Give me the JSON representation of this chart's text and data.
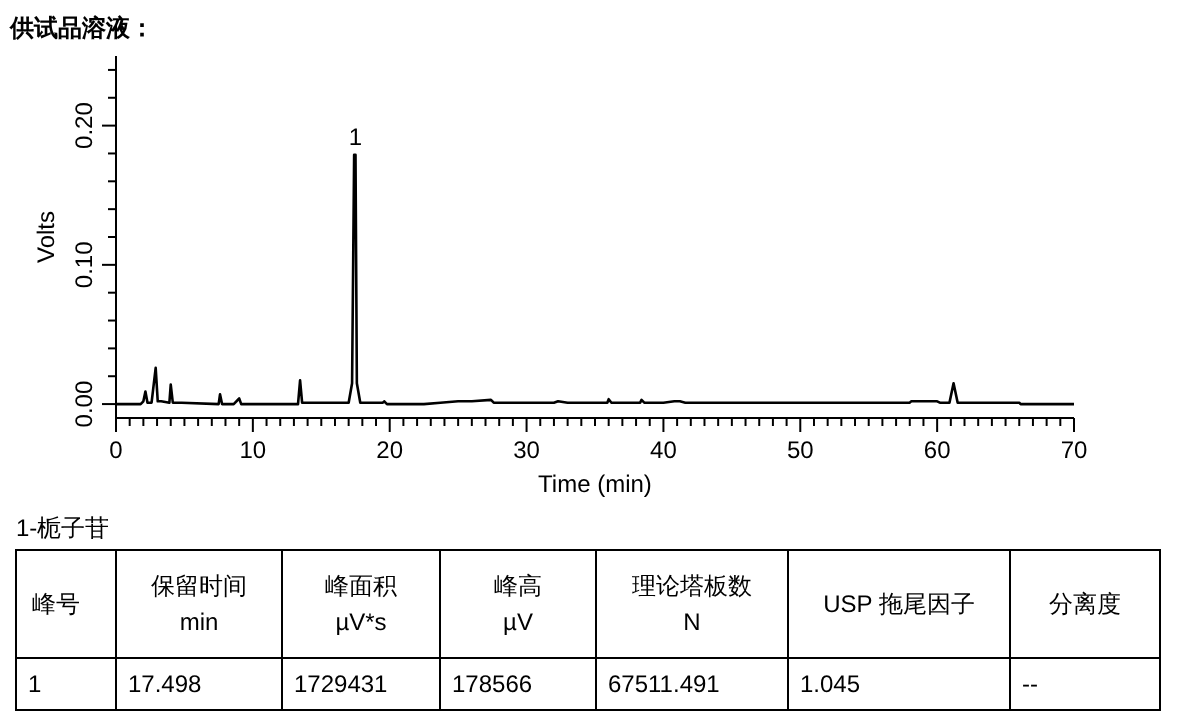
{
  "chart_data": {
    "type": "line",
    "title": "供试品溶液：",
    "xlabel": "Time (min)",
    "ylabel": "Volts",
    "x": [
      0,
      1.8,
      2.0,
      2.15,
      2.3,
      2.6,
      2.9,
      3.05,
      3.3,
      3.9,
      4.0,
      4.15,
      4.8,
      7.5,
      7.6,
      7.75,
      8.6,
      9.0,
      9.15,
      13.3,
      13.45,
      13.6,
      17.0,
      17.25,
      17.4,
      17.5,
      17.6,
      17.85,
      19.5,
      19.6,
      19.8,
      22.5,
      23.7,
      25,
      26,
      27.4,
      27.6,
      32,
      32.3,
      33,
      35.9,
      36.0,
      36.2,
      38.3,
      38.4,
      38.6,
      40,
      40.8,
      41.2,
      41.6,
      58,
      58.1,
      60,
      60.2,
      60.9,
      61.2,
      61.5,
      66,
      66.1,
      70
    ],
    "series": [
      {
        "color": "#000000",
        "values": [
          0.0,
          0.0,
          0.002,
          0.009,
          0.001,
          0.001,
          0.026,
          0.002,
          0.002,
          0.001,
          0.014,
          0.001,
          0.001,
          0.0,
          0.007,
          0.0,
          0.0,
          0.004,
          0.0,
          0.0,
          0.017,
          0.001,
          0.001,
          0.015,
          0.179,
          0.179,
          0.015,
          0.001,
          0.001,
          0.002,
          0.0,
          0.0,
          0.001,
          0.002,
          0.002,
          0.003,
          0.001,
          0.001,
          0.002,
          0.001,
          0.001,
          0.0035,
          0.001,
          0.001,
          0.003,
          0.001,
          0.001,
          0.002,
          0.002,
          0.001,
          0.001,
          0.002,
          0.002,
          0.001,
          0.001,
          0.015,
          0.001,
          0.001,
          0.0,
          0.0
        ]
      }
    ],
    "xlim": [
      0,
      70
    ],
    "ylim": [
      -0.01,
      0.25
    ],
    "xticks": [
      0,
      {
        "value": 1,
        "label": null
      },
      {
        "value": 2,
        "label": null
      },
      {
        "value": 3,
        "label": null
      },
      {
        "value": 4,
        "label": null
      },
      {
        "value": 5,
        "label": null
      },
      {
        "value": 6,
        "label": null
      },
      {
        "value": 7,
        "label": null
      },
      {
        "value": 8,
        "label": null
      },
      {
        "value": 9,
        "label": null
      },
      10,
      {
        "value": 11,
        "label": null
      },
      {
        "value": 12,
        "label": null
      },
      {
        "value": 13,
        "label": null
      },
      {
        "value": 14,
        "label": null
      },
      {
        "value": 15,
        "label": null
      },
      {
        "value": 16,
        "label": null
      },
      {
        "value": 17,
        "label": null
      },
      {
        "value": 18,
        "label": null
      },
      {
        "value": 19,
        "label": null
      },
      20,
      {
        "value": 21,
        "label": null
      },
      {
        "value": 22,
        "label": null
      },
      {
        "value": 23,
        "label": null
      },
      {
        "value": 24,
        "label": null
      },
      {
        "value": 25,
        "label": null
      },
      {
        "value": 26,
        "label": null
      },
      {
        "value": 27,
        "label": null
      },
      {
        "value": 28,
        "label": null
      },
      {
        "value": 29,
        "label": null
      },
      30,
      {
        "value": 31,
        "label": null
      },
      {
        "value": 32,
        "label": null
      },
      {
        "value": 33,
        "label": null
      },
      {
        "value": 34,
        "label": null
      },
      {
        "value": 35,
        "label": null
      },
      {
        "value": 36,
        "label": null
      },
      {
        "value": 37,
        "label": null
      },
      {
        "value": 38,
        "label": null
      },
      {
        "value": 39,
        "label": null
      },
      40,
      {
        "value": 41,
        "label": null
      },
      {
        "value": 42,
        "label": null
      },
      {
        "value": 43,
        "label": null
      },
      {
        "value": 44,
        "label": null
      },
      {
        "value": 45,
        "label": null
      },
      {
        "value": 46,
        "label": null
      },
      {
        "value": 47,
        "label": null
      },
      {
        "value": 48,
        "label": null
      },
      {
        "value": 49,
        "label": null
      },
      50,
      {
        "value": 51,
        "label": null
      },
      {
        "value": 52,
        "label": null
      },
      {
        "value": 53,
        "label": null
      },
      {
        "value": 54,
        "label": null
      },
      {
        "value": 55,
        "label": null
      },
      {
        "value": 56,
        "label": null
      },
      {
        "value": 57,
        "label": null
      },
      {
        "value": 58,
        "label": null
      },
      {
        "value": 59,
        "label": null
      },
      60,
      {
        "value": 61,
        "label": null
      },
      {
        "value": 62,
        "label": null
      },
      {
        "value": 63,
        "label": null
      },
      {
        "value": 64,
        "label": null
      },
      {
        "value": 65,
        "label": null
      },
      {
        "value": 66,
        "label": null
      },
      {
        "value": 67,
        "label": null
      },
      {
        "value": 68,
        "label": null
      },
      {
        "value": 69,
        "label": null
      },
      70
    ],
    "yticks": [
      {
        "value": 0,
        "label": "0.00"
      },
      {
        "value": 0.02,
        "label": null
      },
      {
        "value": 0.04,
        "label": null
      },
      {
        "value": 0.06,
        "label": null
      },
      {
        "value": 0.08,
        "label": null
      },
      {
        "value": 0.1,
        "label": "0.10"
      },
      {
        "value": 0.12,
        "label": null
      },
      {
        "value": 0.14,
        "label": null
      },
      {
        "value": 0.16,
        "label": null
      },
      {
        "value": 0.18,
        "label": null
      },
      {
        "value": 0.2,
        "label": "0.20"
      },
      {
        "value": 0.22,
        "label": null
      },
      {
        "value": 0.24,
        "label": null
      }
    ],
    "annotations": [
      {
        "text": "1",
        "x": 17.498,
        "y": 0.179
      },
      "1-栀子苷",
      "峰号",
      "保留时间\nmin",
      "峰面积\nµV*s",
      "峰高\nµV",
      "理论塔板数\nN",
      "USP 拖尾因子",
      "分离度",
      "1",
      "17.498",
      "1729431",
      "178566",
      "67511.491",
      "1.045",
      "--"
    ]
  }
}
